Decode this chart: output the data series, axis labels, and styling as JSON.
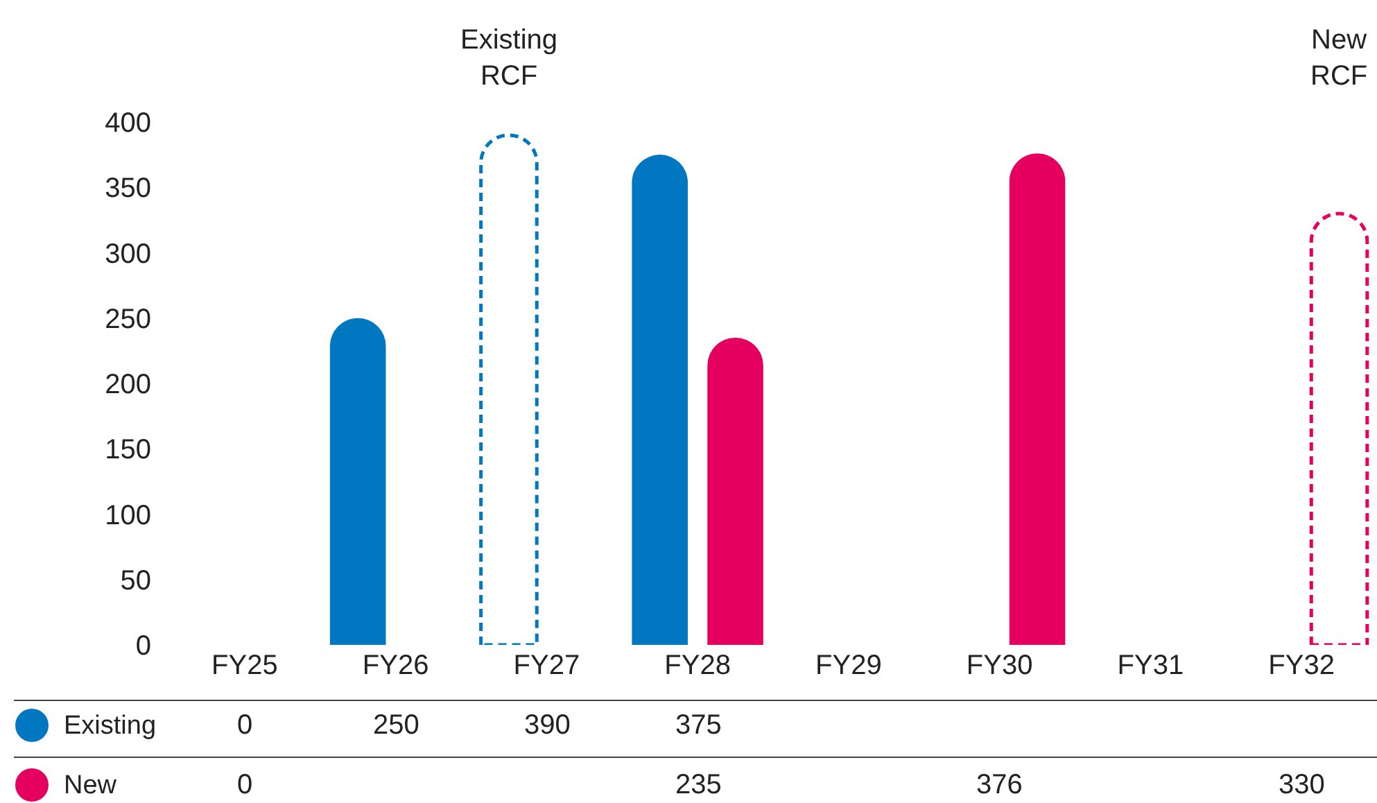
{
  "chart_data": {
    "type": "bar",
    "categories": [
      "FY25",
      "FY26",
      "FY27",
      "FY28",
      "FY29",
      "FY30",
      "FY31",
      "FY32"
    ],
    "series": [
      {
        "name": "Existing",
        "color": "#0077c0",
        "values": [
          0,
          250,
          390,
          375,
          null,
          null,
          null,
          null
        ],
        "line_style": [
          "solid",
          "solid",
          "dashed",
          "solid",
          "solid",
          "solid",
          "solid",
          "solid"
        ]
      },
      {
        "name": "New",
        "color": "#e5005f",
        "values": [
          0,
          null,
          null,
          235,
          null,
          376,
          null,
          330
        ],
        "line_style": [
          "solid",
          "solid",
          "solid",
          "solid",
          "solid",
          "solid",
          "solid",
          "dashed"
        ]
      }
    ],
    "ylim": [
      0,
      400
    ],
    "yticks": [
      0,
      50,
      100,
      150,
      200,
      250,
      300,
      350,
      400
    ],
    "grid": false,
    "legend": "bottom left",
    "data_labels": true,
    "annotations": [
      "Existing RCF",
      "New RCF"
    ]
  }
}
